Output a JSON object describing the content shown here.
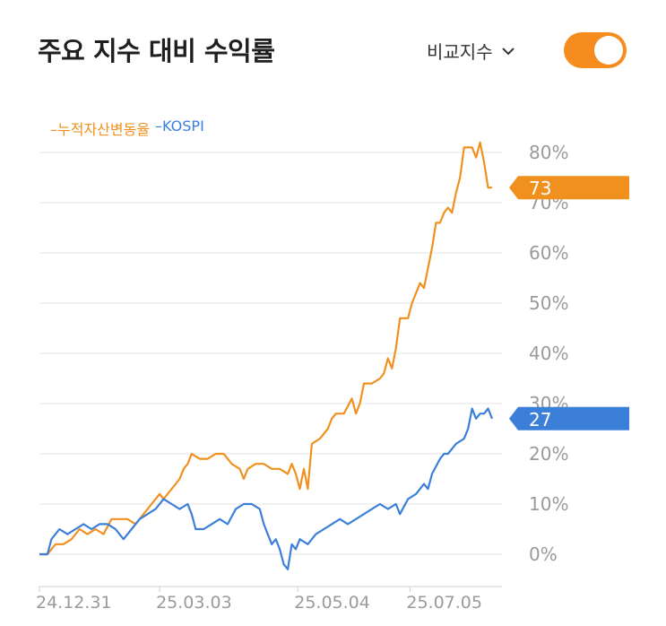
{
  "header": {
    "title": "주요 지수 대비 수익률",
    "compare_label": "비교지수",
    "toggle_on": true
  },
  "legend": {
    "series1": "–누적자산변동율",
    "series2": "–KOSPI"
  },
  "colors": {
    "accent": "#f68c1e",
    "series1": "#f0911f",
    "series2": "#3c7fd9",
    "grid": "#e6e6e6",
    "axis_text": "#9a9a9a"
  },
  "chart_data": {
    "type": "line",
    "title": "",
    "xlabel": "",
    "ylabel": "",
    "y_ticks": [
      "0%",
      "10%",
      "20%",
      "30%",
      "40%",
      "50%",
      "60%",
      "70%",
      "80%"
    ],
    "ylim": [
      -4,
      82
    ],
    "x_ticks": [
      "24.12.31",
      "25.03.03",
      "25.05.04",
      "25.07.05"
    ],
    "x_tick_positions": [
      0,
      0.3,
      0.645,
      0.925
    ],
    "grid": true,
    "series": [
      {
        "name": "누적자산변동율",
        "color": "#f0911f",
        "last_label": "73",
        "points": [
          [
            0.0,
            0
          ],
          [
            0.02,
            0
          ],
          [
            0.04,
            2
          ],
          [
            0.06,
            2
          ],
          [
            0.08,
            3
          ],
          [
            0.1,
            5
          ],
          [
            0.12,
            4
          ],
          [
            0.14,
            5
          ],
          [
            0.16,
            4
          ],
          [
            0.18,
            7
          ],
          [
            0.2,
            7
          ],
          [
            0.22,
            7
          ],
          [
            0.24,
            6
          ],
          [
            0.26,
            8
          ],
          [
            0.28,
            10
          ],
          [
            0.3,
            12
          ],
          [
            0.31,
            11
          ],
          [
            0.33,
            13
          ],
          [
            0.35,
            15
          ],
          [
            0.36,
            17
          ],
          [
            0.37,
            18
          ],
          [
            0.38,
            20
          ],
          [
            0.4,
            19
          ],
          [
            0.42,
            19
          ],
          [
            0.44,
            20
          ],
          [
            0.46,
            20
          ],
          [
            0.48,
            18
          ],
          [
            0.5,
            17
          ],
          [
            0.51,
            15
          ],
          [
            0.52,
            17
          ],
          [
            0.54,
            18
          ],
          [
            0.56,
            18
          ],
          [
            0.58,
            17
          ],
          [
            0.6,
            17
          ],
          [
            0.62,
            16
          ],
          [
            0.63,
            18
          ],
          [
            0.64,
            16
          ],
          [
            0.65,
            13
          ],
          [
            0.66,
            17
          ],
          [
            0.67,
            13
          ],
          [
            0.68,
            22
          ],
          [
            0.7,
            23
          ],
          [
            0.72,
            25
          ],
          [
            0.73,
            27
          ],
          [
            0.74,
            28
          ],
          [
            0.76,
            28
          ],
          [
            0.78,
            31
          ],
          [
            0.79,
            28
          ],
          [
            0.8,
            30
          ],
          [
            0.81,
            34
          ],
          [
            0.83,
            34
          ],
          [
            0.85,
            35
          ],
          [
            0.86,
            36
          ],
          [
            0.87,
            39
          ],
          [
            0.88,
            37
          ],
          [
            0.89,
            41
          ],
          [
            0.9,
            47
          ],
          [
            0.92,
            47
          ],
          [
            0.93,
            50
          ],
          [
            0.94,
            52
          ],
          [
            0.95,
            54
          ],
          [
            0.96,
            53
          ],
          [
            0.97,
            57
          ],
          [
            0.98,
            61
          ],
          [
            0.99,
            66
          ],
          [
            1.0,
            66
          ],
          [
            1.01,
            68
          ],
          [
            1.02,
            69
          ],
          [
            1.03,
            68
          ],
          [
            1.04,
            72
          ],
          [
            1.05,
            75
          ],
          [
            1.06,
            81
          ],
          [
            1.08,
            81
          ],
          [
            1.09,
            79
          ],
          [
            1.1,
            82
          ],
          [
            1.11,
            78
          ],
          [
            1.12,
            73
          ],
          [
            1.13,
            73
          ]
        ]
      },
      {
        "name": "KOSPI",
        "color": "#3c7fd9",
        "last_label": "27",
        "points": [
          [
            0.0,
            0
          ],
          [
            0.02,
            0
          ],
          [
            0.03,
            3
          ],
          [
            0.05,
            5
          ],
          [
            0.07,
            4
          ],
          [
            0.09,
            5
          ],
          [
            0.11,
            6
          ],
          [
            0.13,
            5
          ],
          [
            0.15,
            6
          ],
          [
            0.17,
            6
          ],
          [
            0.19,
            5
          ],
          [
            0.21,
            3
          ],
          [
            0.23,
            5
          ],
          [
            0.25,
            7
          ],
          [
            0.27,
            8
          ],
          [
            0.29,
            9
          ],
          [
            0.31,
            11
          ],
          [
            0.33,
            10
          ],
          [
            0.35,
            9
          ],
          [
            0.37,
            10
          ],
          [
            0.38,
            8
          ],
          [
            0.39,
            5
          ],
          [
            0.41,
            5
          ],
          [
            0.43,
            6
          ],
          [
            0.45,
            7
          ],
          [
            0.47,
            6
          ],
          [
            0.49,
            9
          ],
          [
            0.51,
            10
          ],
          [
            0.53,
            10
          ],
          [
            0.55,
            9
          ],
          [
            0.56,
            6
          ],
          [
            0.57,
            4
          ],
          [
            0.58,
            2
          ],
          [
            0.59,
            3
          ],
          [
            0.6,
            1
          ],
          [
            0.61,
            -2
          ],
          [
            0.62,
            -3
          ],
          [
            0.63,
            2
          ],
          [
            0.64,
            1
          ],
          [
            0.65,
            3
          ],
          [
            0.67,
            2
          ],
          [
            0.69,
            4
          ],
          [
            0.71,
            5
          ],
          [
            0.73,
            6
          ],
          [
            0.75,
            7
          ],
          [
            0.77,
            6
          ],
          [
            0.79,
            7
          ],
          [
            0.81,
            8
          ],
          [
            0.83,
            9
          ],
          [
            0.85,
            10
          ],
          [
            0.87,
            9
          ],
          [
            0.89,
            10
          ],
          [
            0.9,
            8
          ],
          [
            0.92,
            11
          ],
          [
            0.94,
            12
          ],
          [
            0.96,
            14
          ],
          [
            0.97,
            13
          ],
          [
            0.98,
            16
          ],
          [
            1.0,
            19
          ],
          [
            1.01,
            20
          ],
          [
            1.02,
            20
          ],
          [
            1.04,
            22
          ],
          [
            1.06,
            23
          ],
          [
            1.07,
            25
          ],
          [
            1.08,
            29
          ],
          [
            1.09,
            27
          ],
          [
            1.1,
            28
          ],
          [
            1.11,
            28
          ],
          [
            1.12,
            29
          ],
          [
            1.13,
            27
          ]
        ]
      }
    ]
  }
}
